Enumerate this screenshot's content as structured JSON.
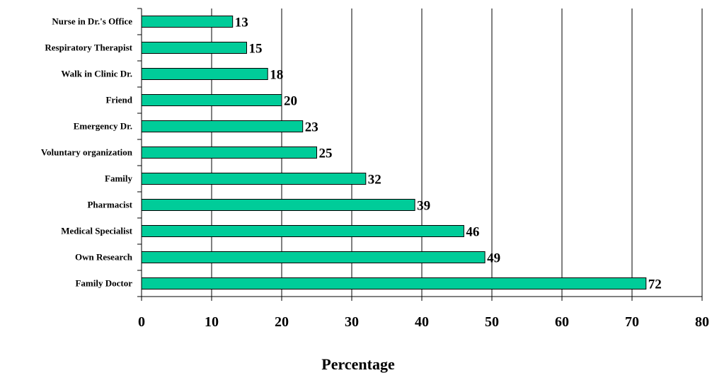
{
  "chart_data": {
    "type": "bar",
    "orientation": "horizontal",
    "categories": [
      "Family Doctor",
      "Own Research",
      "Medical Specialist",
      "Pharmacist",
      "Family",
      "Voluntary organization",
      "Emergency Dr.",
      "Friend",
      "Walk in Clinic Dr.",
      "Respiratory Therapist",
      "Nurse in Dr.'s Office"
    ],
    "values": [
      72,
      49,
      46,
      39,
      32,
      25,
      23,
      20,
      18,
      15,
      13
    ],
    "xlabel": "Percentage",
    "xlim": [
      0,
      80
    ],
    "xticks": [
      0,
      10,
      20,
      30,
      40,
      50,
      60,
      70,
      80
    ],
    "grid": "vertical",
    "bar_color": "#00CC99",
    "bar_edge_color": "#000000"
  }
}
